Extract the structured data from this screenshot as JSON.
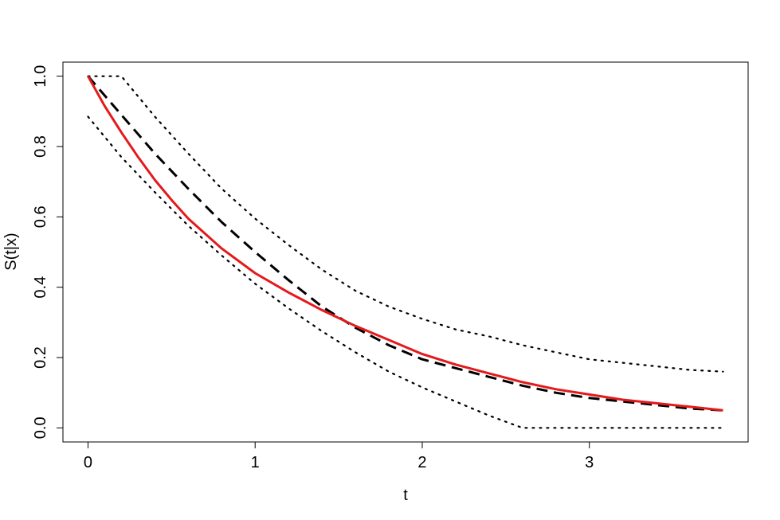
{
  "chart_data": {
    "type": "line",
    "title": "",
    "xlabel": "t",
    "ylabel": "S(t|x)",
    "xlim": [
      -0.15,
      3.95
    ],
    "ylim": [
      -0.04,
      1.04
    ],
    "xticks": [
      0,
      1,
      2,
      3
    ],
    "yticks": [
      0.0,
      0.2,
      0.4,
      0.6,
      0.8,
      1.0
    ],
    "xtick_labels": [
      "0",
      "1",
      "2",
      "3"
    ],
    "ytick_labels": [
      "0.0",
      "0.2",
      "0.4",
      "0.6",
      "0.8",
      "1.0"
    ],
    "grid": false,
    "legend": "none",
    "series": [
      {
        "style": "solid",
        "color": "#e31a1c",
        "x": [
          0,
          0.1,
          0.2,
          0.3,
          0.4,
          0.5,
          0.6,
          0.8,
          1.0,
          1.2,
          1.4,
          1.6,
          1.8,
          2.0,
          2.2,
          2.4,
          2.6,
          2.8,
          3.0,
          3.2,
          3.4,
          3.6,
          3.8
        ],
        "y": [
          1.0,
          0.915,
          0.84,
          0.77,
          0.705,
          0.648,
          0.595,
          0.51,
          0.44,
          0.385,
          0.335,
          0.29,
          0.25,
          0.21,
          0.18,
          0.155,
          0.13,
          0.11,
          0.095,
          0.08,
          0.07,
          0.06,
          0.05
        ]
      },
      {
        "style": "dashed",
        "color": "#000000",
        "x": [
          0,
          0.2,
          0.4,
          0.6,
          0.8,
          1.0,
          1.2,
          1.4,
          1.6,
          1.8,
          2.0,
          2.2,
          2.4,
          2.6,
          2.8,
          3.0,
          3.2,
          3.4,
          3.6,
          3.8
        ],
        "y": [
          1.0,
          0.89,
          0.78,
          0.68,
          0.585,
          0.5,
          0.42,
          0.345,
          0.285,
          0.235,
          0.195,
          0.17,
          0.145,
          0.12,
          0.1,
          0.085,
          0.075,
          0.065,
          0.055,
          0.05
        ]
      },
      {
        "style": "dotted",
        "color": "#000000",
        "x": [
          0,
          0.2,
          0.4,
          0.6,
          0.8,
          1.0,
          1.2,
          1.4,
          1.6,
          1.8,
          2.0,
          2.2,
          2.4,
          2.6,
          2.8,
          3.0,
          3.2,
          3.4,
          3.6,
          3.8
        ],
        "y": [
          1.0,
          1.0,
          0.885,
          0.78,
          0.68,
          0.595,
          0.52,
          0.45,
          0.39,
          0.345,
          0.31,
          0.28,
          0.26,
          0.235,
          0.215,
          0.195,
          0.185,
          0.175,
          0.165,
          0.16
        ]
      },
      {
        "style": "dotted",
        "color": "#000000",
        "x": [
          0,
          0.2,
          0.4,
          0.6,
          0.8,
          1.0,
          1.2,
          1.4,
          1.6,
          1.8,
          2.0,
          2.2,
          2.4,
          2.6,
          2.8,
          3.0,
          3.2,
          3.4,
          3.6,
          3.8
        ],
        "y": [
          0.885,
          0.77,
          0.67,
          0.575,
          0.49,
          0.41,
          0.34,
          0.275,
          0.215,
          0.16,
          0.115,
          0.075,
          0.035,
          0.0,
          0.0,
          0.0,
          0.0,
          0.0,
          0.0,
          0.0
        ]
      }
    ]
  }
}
